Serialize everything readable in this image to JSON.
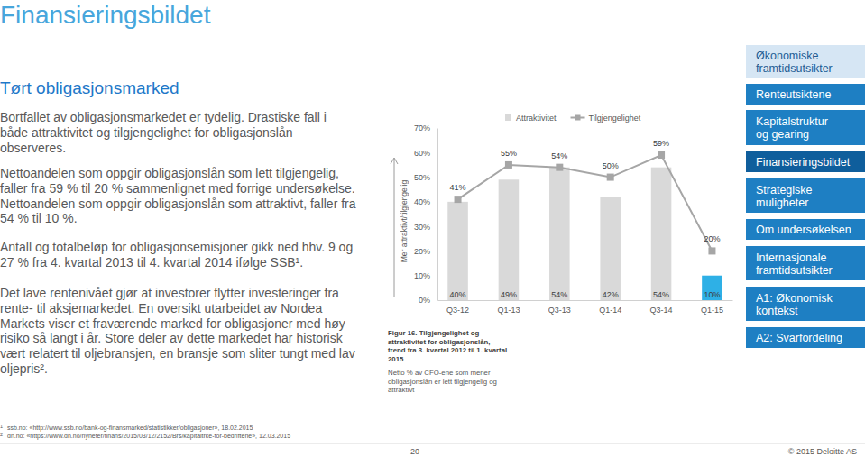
{
  "slide": {
    "title": "Finansieringsbildet",
    "subtitle": "Tørt obligasjonsmarked",
    "paragraphs": [
      [
        "Bortfallet av obligasjonsmarkedet er tydelig. Drastiske fall i",
        "både attraktivitet og tilgjengelighet for obligasjonslån",
        "observeres."
      ],
      [
        "Nettoandelen som oppgir obligasjonslån som lett tilgjengelig,",
        "faller fra 59 % til 20 % sammenlignet med forrige undersøkelse.",
        "Nettoandelen som oppgir obligasjonslån som attraktivt, faller fra",
        "54 % til 10 %."
      ],
      [
        "Antall og totalbeløp for obligasjonsemisjoner gikk ned hhv. 9 og",
        "27 % fra 4. kvartal 2013 til 4. kvartal 2014 ifølge SSB¹."
      ],
      [
        "Det lave rentenivået gjør at investorer flytter investeringer fra",
        "rente- til aksjemarkedet. En oversikt utarbeidet av Nordea",
        "Markets viser et fraværende marked for obligasjoner med høy",
        "risiko så langt i år. Store deler av dette markedet har historisk",
        "vært relatert til oljebransjen, en bransje som sliter tungt med lav",
        "oljepris²."
      ]
    ],
    "nav": [
      [
        "Økonomiske",
        "framtidsutsikter"
      ],
      [
        "Renteutsiktene"
      ],
      [
        "Kapitalstruktur",
        "og gearing"
      ],
      [
        "Finansieringsbildet"
      ],
      [
        "Strategiske",
        "muligheter"
      ],
      [
        "Om undersøkelsen"
      ],
      [
        "Internasjonale",
        "framtidsutsikter"
      ],
      [
        "A1: Økonomisk",
        "kontekst"
      ],
      [
        "A2: Svarfordeling"
      ]
    ],
    "caption": [
      "Figur 16. Tilgjengelighet og",
      "attraktivitet for obligasjonslån,",
      "trend fra 3. kvartal 2012 til 1. kvartal",
      "2015"
    ],
    "note": [
      "Netto % av CFO-ene som mener",
      "obligasjonslån er lett tilgjengelig og",
      "attraktivt"
    ],
    "footnotes": [
      {
        "mark": "1",
        "text": "ssb.no: «http://www.ssb.no/bank-og-finansmarked/statistikker/obligasjoner», 18.02.2015"
      },
      {
        "mark": "2",
        "text": "dn.no: «https://www.dn.no/nyheter/finans/2015/03/12/2152/Brs/kapitaltrke-for-bedriftene», 12.03.2015"
      }
    ],
    "page_number": "20",
    "copyright": "© 2015 Deloitte AS"
  },
  "chart_data": {
    "type": "bar",
    "y_label": "Mer attraktivt/tilgjengelig",
    "categories": [
      "Q3-12",
      "Q1-13",
      "Q3-13",
      "Q1-14",
      "Q3-14",
      "Q1-15"
    ],
    "series": [
      {
        "name": "Attraktivitet",
        "type": "bar",
        "colors": [
          "#d9d9d9",
          "#d9d9d9",
          "#d9d9d9",
          "#d9d9d9",
          "#d9d9d9",
          "#2eb0e6"
        ],
        "values": [
          40,
          49,
          54,
          42,
          54,
          10
        ],
        "value_labels": [
          "40%",
          "49%",
          "54%",
          "42%",
          "54%",
          "10%"
        ]
      },
      {
        "name": "Tilgjengelighet",
        "type": "line",
        "color": "#a6a6a6",
        "marker": "square",
        "values": [
          41,
          55,
          54,
          50,
          59,
          20
        ],
        "value_labels": [
          "41%",
          "55%",
          "54%",
          "50%",
          "59%",
          "20%"
        ]
      }
    ],
    "ylim": [
      0,
      70
    ],
    "yticks": [
      {
        "value": 0,
        "label": "0%"
      },
      {
        "value": 10,
        "label": "10%"
      },
      {
        "value": 20,
        "label": "20%"
      },
      {
        "value": 30,
        "label": "30%"
      },
      {
        "value": 40,
        "label": "40%"
      },
      {
        "value": 50,
        "label": "50%"
      },
      {
        "value": 60,
        "label": "60%"
      },
      {
        "value": 70,
        "label": "70%"
      }
    ],
    "data_labels": true,
    "legend": "top"
  }
}
